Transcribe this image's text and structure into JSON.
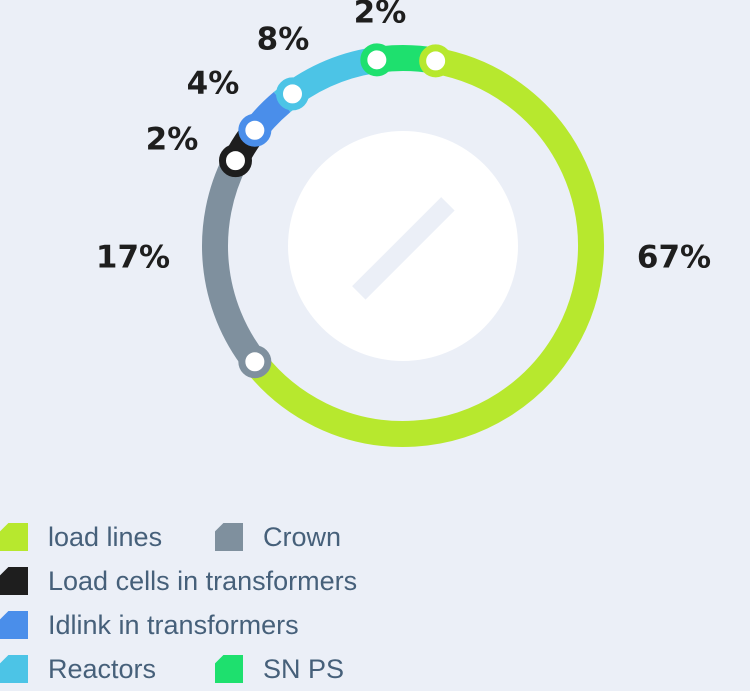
{
  "chart_data": {
    "type": "pie",
    "variant": "ring",
    "title": "",
    "series": [
      {
        "name": "load lines",
        "value": 67,
        "label": "67%",
        "color": "#b7e82e"
      },
      {
        "name": "Crown",
        "value": 17,
        "label": "17%",
        "color": "#7f909e"
      },
      {
        "name": "Load cells in transformers",
        "value": 2,
        "label": "2%",
        "color": "#1e1e1e"
      },
      {
        "name": "Idlink in transformers",
        "value": 4,
        "label": "4%",
        "color": "#4a8eea"
      },
      {
        "name": "Reactors",
        "value": 8,
        "label": "8%",
        "color": "#4cc4e6"
      },
      {
        "name": "SN PS",
        "value": 2,
        "label": "2%",
        "color": "#1ee06e"
      }
    ],
    "legend_position": "bottom-left",
    "center_icon": "slash-icon"
  },
  "legend": {
    "rows": [
      [
        0,
        1
      ],
      [
        2
      ],
      [
        3
      ],
      [
        4,
        5
      ]
    ]
  }
}
